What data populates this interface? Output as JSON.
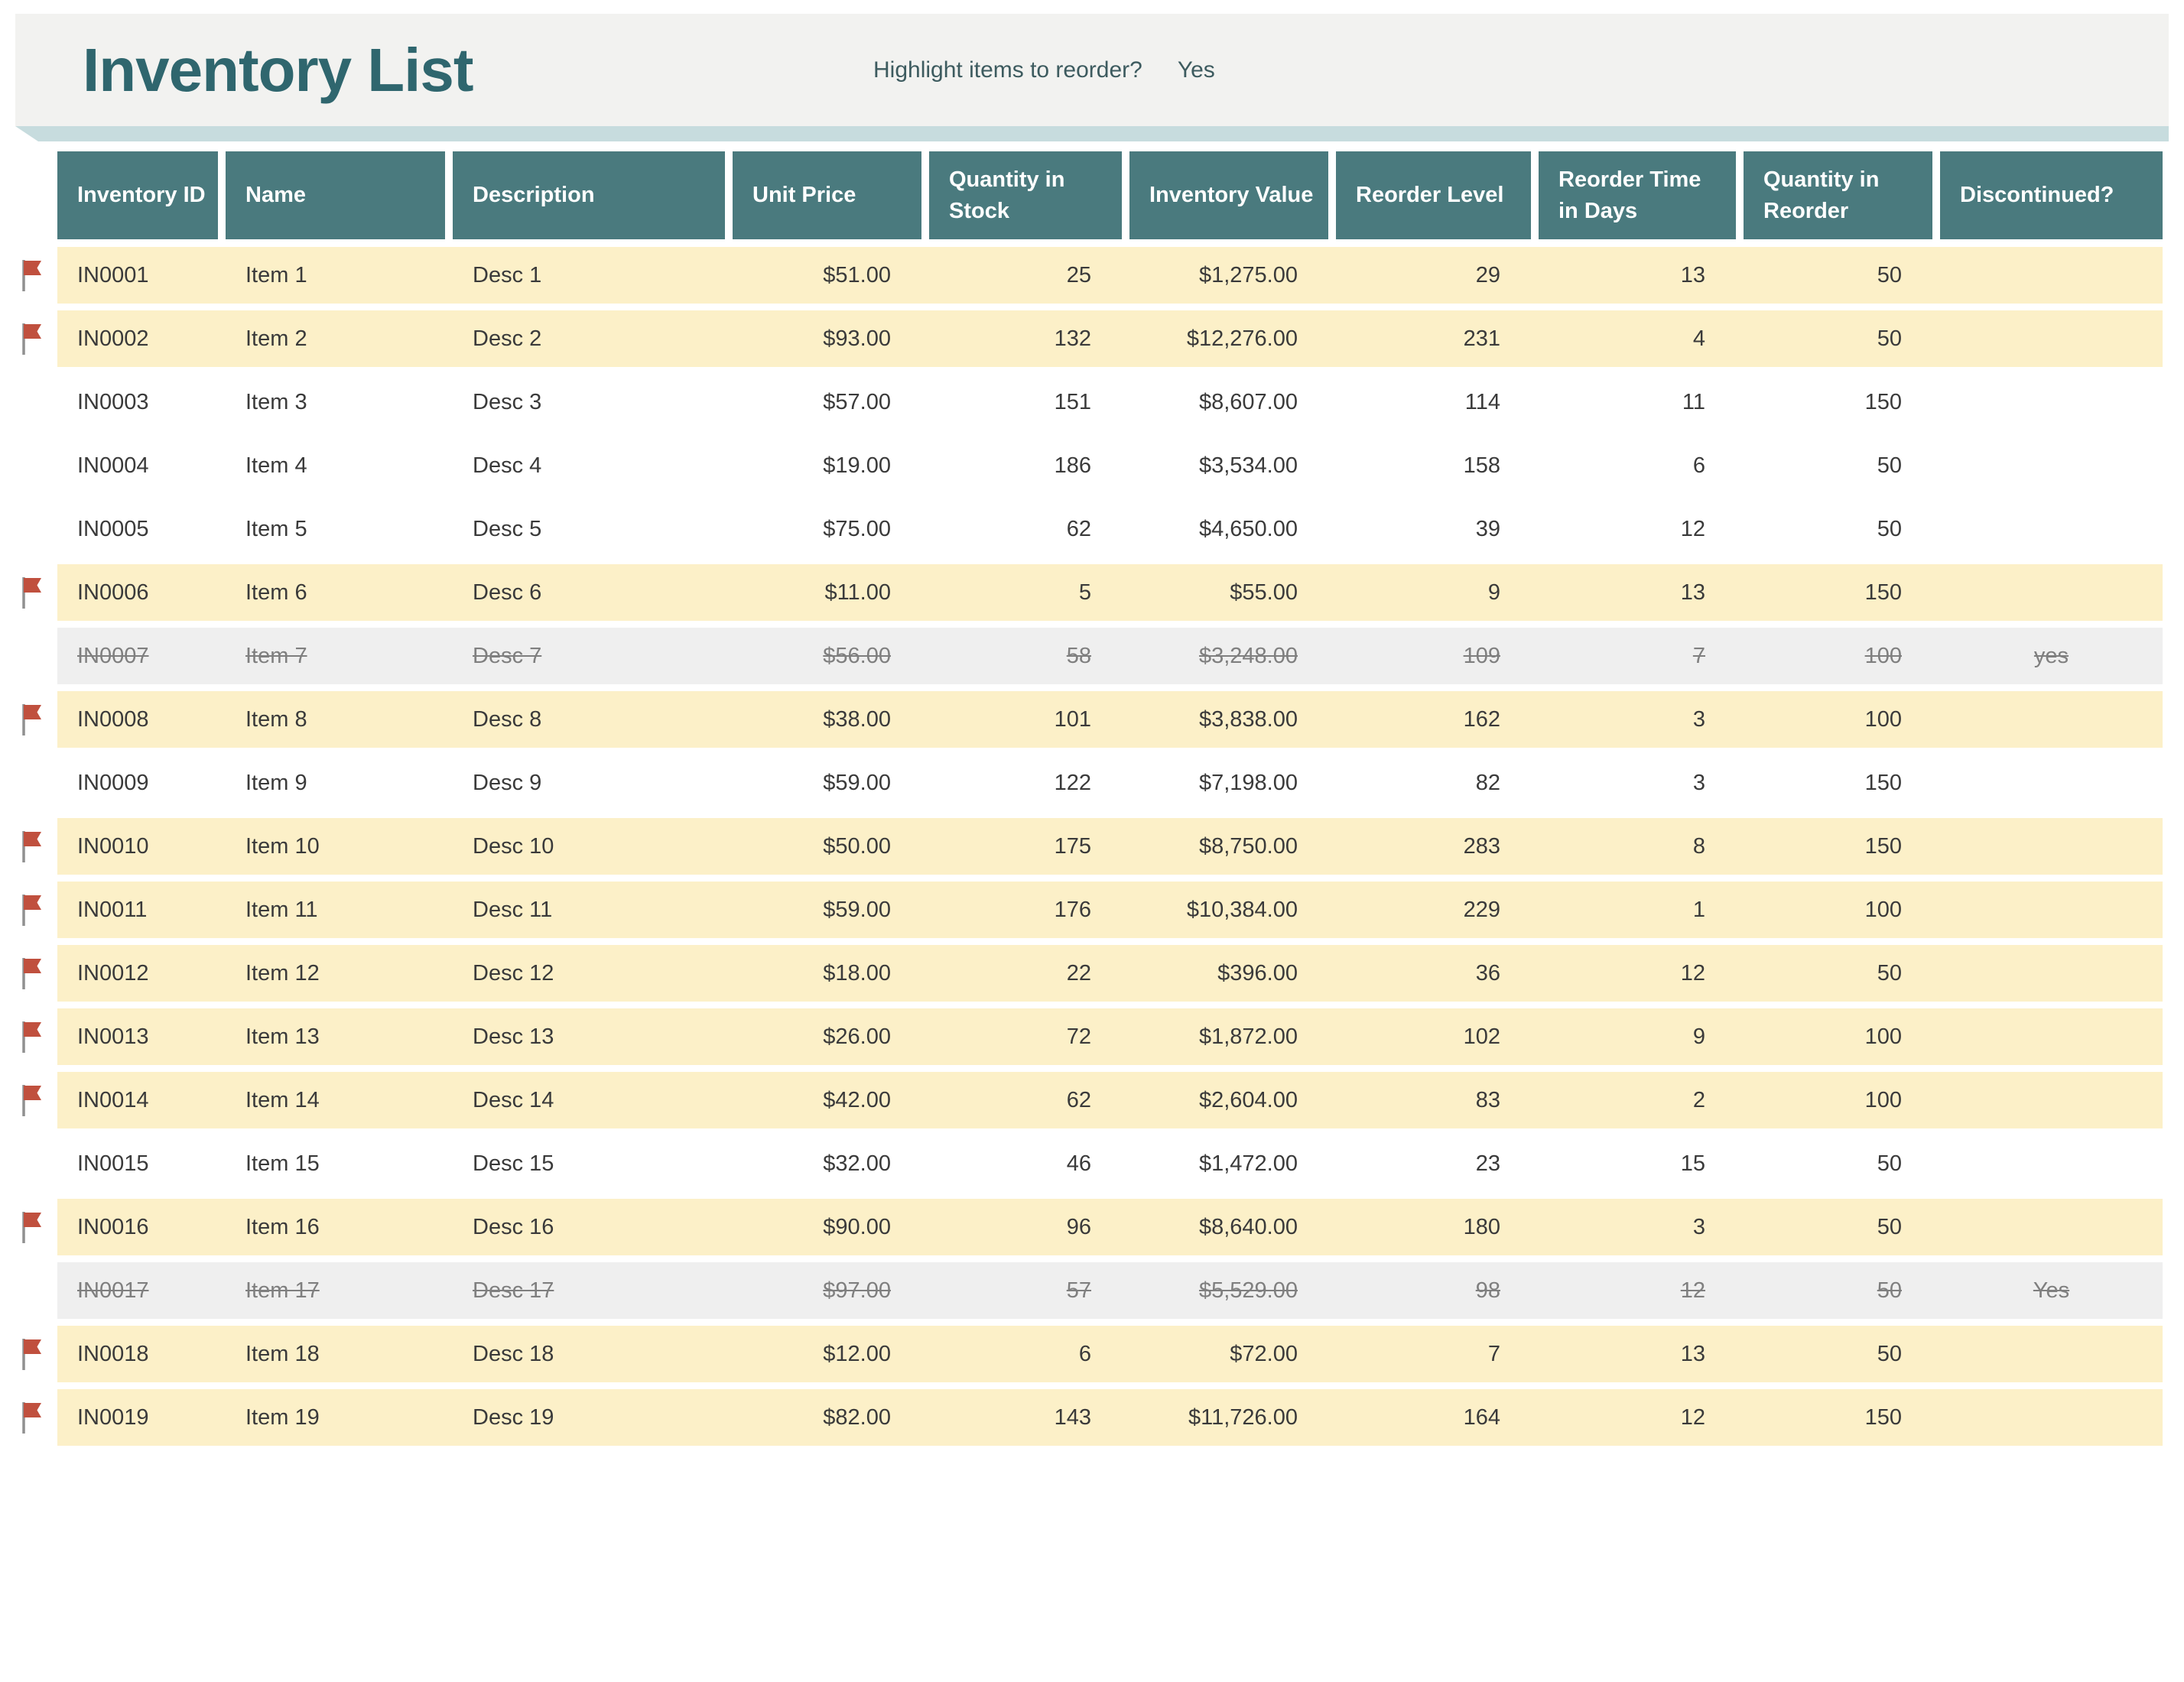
{
  "header": {
    "title": "Inventory List",
    "reorder_prompt_label": "Highlight items to reorder?",
    "reorder_prompt_value": "Yes"
  },
  "colors": {
    "banner_background": "#F2F2F0",
    "title_text": "#2F666E",
    "ribbon_band": "#C7DCDE",
    "table_header_fill": "#4A7A7E",
    "table_header_text": "#FFFFFF",
    "reorder_row_fill": "#FCF0C8",
    "normal_row_fill": "#FFFFFF",
    "discontinued_row_fill": "#EFEFEF",
    "discontinued_text": "#7F7F7F",
    "row_text": "#3A3A3A",
    "flag_icon_fill": "#C0503E",
    "flag_pole": "#909090"
  },
  "icons": {
    "row_flag": "reorder-flag-icon"
  },
  "table": {
    "columns": [
      {
        "key": "inventory_id",
        "label": "Inventory ID",
        "align": "left"
      },
      {
        "key": "name",
        "label": "Name",
        "align": "left"
      },
      {
        "key": "description",
        "label": "Description",
        "align": "left"
      },
      {
        "key": "unit_price",
        "label": "Unit Price",
        "align": "right"
      },
      {
        "key": "quantity_in_stock",
        "label": "Quantity in Stock",
        "align": "right"
      },
      {
        "key": "inventory_value",
        "label": "Inventory Value",
        "align": "right"
      },
      {
        "key": "reorder_level",
        "label": "Reorder Level",
        "align": "right"
      },
      {
        "key": "reorder_time_in_days",
        "label": "Reorder Time in Days",
        "align": "right"
      },
      {
        "key": "quantity_in_reorder",
        "label": "Quantity in Reorder",
        "align": "right"
      },
      {
        "key": "discontinued",
        "label": "Discontinued?",
        "align": "center"
      }
    ],
    "rows": [
      {
        "inventory_id": "IN0001",
        "name": "Item 1",
        "description": "Desc 1",
        "unit_price": "$51.00",
        "quantity_in_stock": "25",
        "inventory_value": "$1,275.00",
        "reorder_level": "29",
        "reorder_time_in_days": "13",
        "quantity_in_reorder": "50",
        "discontinued": "",
        "flagged": true,
        "state": "reorder"
      },
      {
        "inventory_id": "IN0002",
        "name": "Item 2",
        "description": "Desc 2",
        "unit_price": "$93.00",
        "quantity_in_stock": "132",
        "inventory_value": "$12,276.00",
        "reorder_level": "231",
        "reorder_time_in_days": "4",
        "quantity_in_reorder": "50",
        "discontinued": "",
        "flagged": true,
        "state": "reorder"
      },
      {
        "inventory_id": "IN0003",
        "name": "Item 3",
        "description": "Desc 3",
        "unit_price": "$57.00",
        "quantity_in_stock": "151",
        "inventory_value": "$8,607.00",
        "reorder_level": "114",
        "reorder_time_in_days": "11",
        "quantity_in_reorder": "150",
        "discontinued": "",
        "flagged": false,
        "state": "normal"
      },
      {
        "inventory_id": "IN0004",
        "name": "Item 4",
        "description": "Desc 4",
        "unit_price": "$19.00",
        "quantity_in_stock": "186",
        "inventory_value": "$3,534.00",
        "reorder_level": "158",
        "reorder_time_in_days": "6",
        "quantity_in_reorder": "50",
        "discontinued": "",
        "flagged": false,
        "state": "normal"
      },
      {
        "inventory_id": "IN0005",
        "name": "Item 5",
        "description": "Desc 5",
        "unit_price": "$75.00",
        "quantity_in_stock": "62",
        "inventory_value": "$4,650.00",
        "reorder_level": "39",
        "reorder_time_in_days": "12",
        "quantity_in_reorder": "50",
        "discontinued": "",
        "flagged": false,
        "state": "normal"
      },
      {
        "inventory_id": "IN0006",
        "name": "Item 6",
        "description": "Desc 6",
        "unit_price": "$11.00",
        "quantity_in_stock": "5",
        "inventory_value": "$55.00",
        "reorder_level": "9",
        "reorder_time_in_days": "13",
        "quantity_in_reorder": "150",
        "discontinued": "",
        "flagged": true,
        "state": "reorder"
      },
      {
        "inventory_id": "IN0007",
        "name": "Item 7",
        "description": "Desc 7",
        "unit_price": "$56.00",
        "quantity_in_stock": "58",
        "inventory_value": "$3,248.00",
        "reorder_level": "109",
        "reorder_time_in_days": "7",
        "quantity_in_reorder": "100",
        "discontinued": "yes",
        "flagged": false,
        "state": "discontinued"
      },
      {
        "inventory_id": "IN0008",
        "name": "Item 8",
        "description": "Desc 8",
        "unit_price": "$38.00",
        "quantity_in_stock": "101",
        "inventory_value": "$3,838.00",
        "reorder_level": "162",
        "reorder_time_in_days": "3",
        "quantity_in_reorder": "100",
        "discontinued": "",
        "flagged": true,
        "state": "reorder"
      },
      {
        "inventory_id": "IN0009",
        "name": "Item 9",
        "description": "Desc 9",
        "unit_price": "$59.00",
        "quantity_in_stock": "122",
        "inventory_value": "$7,198.00",
        "reorder_level": "82",
        "reorder_time_in_days": "3",
        "quantity_in_reorder": "150",
        "discontinued": "",
        "flagged": false,
        "state": "normal"
      },
      {
        "inventory_id": "IN0010",
        "name": "Item 10",
        "description": "Desc 10",
        "unit_price": "$50.00",
        "quantity_in_stock": "175",
        "inventory_value": "$8,750.00",
        "reorder_level": "283",
        "reorder_time_in_days": "8",
        "quantity_in_reorder": "150",
        "discontinued": "",
        "flagged": true,
        "state": "reorder"
      },
      {
        "inventory_id": "IN0011",
        "name": "Item 11",
        "description": "Desc 11",
        "unit_price": "$59.00",
        "quantity_in_stock": "176",
        "inventory_value": "$10,384.00",
        "reorder_level": "229",
        "reorder_time_in_days": "1",
        "quantity_in_reorder": "100",
        "discontinued": "",
        "flagged": true,
        "state": "reorder"
      },
      {
        "inventory_id": "IN0012",
        "name": "Item 12",
        "description": "Desc 12",
        "unit_price": "$18.00",
        "quantity_in_stock": "22",
        "inventory_value": "$396.00",
        "reorder_level": "36",
        "reorder_time_in_days": "12",
        "quantity_in_reorder": "50",
        "discontinued": "",
        "flagged": true,
        "state": "reorder"
      },
      {
        "inventory_id": "IN0013",
        "name": "Item 13",
        "description": "Desc 13",
        "unit_price": "$26.00",
        "quantity_in_stock": "72",
        "inventory_value": "$1,872.00",
        "reorder_level": "102",
        "reorder_time_in_days": "9",
        "quantity_in_reorder": "100",
        "discontinued": "",
        "flagged": true,
        "state": "reorder"
      },
      {
        "inventory_id": "IN0014",
        "name": "Item 14",
        "description": "Desc 14",
        "unit_price": "$42.00",
        "quantity_in_stock": "62",
        "inventory_value": "$2,604.00",
        "reorder_level": "83",
        "reorder_time_in_days": "2",
        "quantity_in_reorder": "100",
        "discontinued": "",
        "flagged": true,
        "state": "reorder"
      },
      {
        "inventory_id": "IN0015",
        "name": "Item 15",
        "description": "Desc 15",
        "unit_price": "$32.00",
        "quantity_in_stock": "46",
        "inventory_value": "$1,472.00",
        "reorder_level": "23",
        "reorder_time_in_days": "15",
        "quantity_in_reorder": "50",
        "discontinued": "",
        "flagged": false,
        "state": "normal"
      },
      {
        "inventory_id": "IN0016",
        "name": "Item 16",
        "description": "Desc 16",
        "unit_price": "$90.00",
        "quantity_in_stock": "96",
        "inventory_value": "$8,640.00",
        "reorder_level": "180",
        "reorder_time_in_days": "3",
        "quantity_in_reorder": "50",
        "discontinued": "",
        "flagged": true,
        "state": "reorder"
      },
      {
        "inventory_id": "IN0017",
        "name": "Item 17",
        "description": "Desc 17",
        "unit_price": "$97.00",
        "quantity_in_stock": "57",
        "inventory_value": "$5,529.00",
        "reorder_level": "98",
        "reorder_time_in_days": "12",
        "quantity_in_reorder": "50",
        "discontinued": "Yes",
        "flagged": false,
        "state": "discontinued"
      },
      {
        "inventory_id": "IN0018",
        "name": "Item 18",
        "description": "Desc 18",
        "unit_price": "$12.00",
        "quantity_in_stock": "6",
        "inventory_value": "$72.00",
        "reorder_level": "7",
        "reorder_time_in_days": "13",
        "quantity_in_reorder": "50",
        "discontinued": "",
        "flagged": true,
        "state": "reorder"
      },
      {
        "inventory_id": "IN0019",
        "name": "Item 19",
        "description": "Desc 19",
        "unit_price": "$82.00",
        "quantity_in_stock": "143",
        "inventory_value": "$11,726.00",
        "reorder_level": "164",
        "reorder_time_in_days": "12",
        "quantity_in_reorder": "150",
        "discontinued": "",
        "flagged": true,
        "state": "reorder"
      }
    ]
  }
}
